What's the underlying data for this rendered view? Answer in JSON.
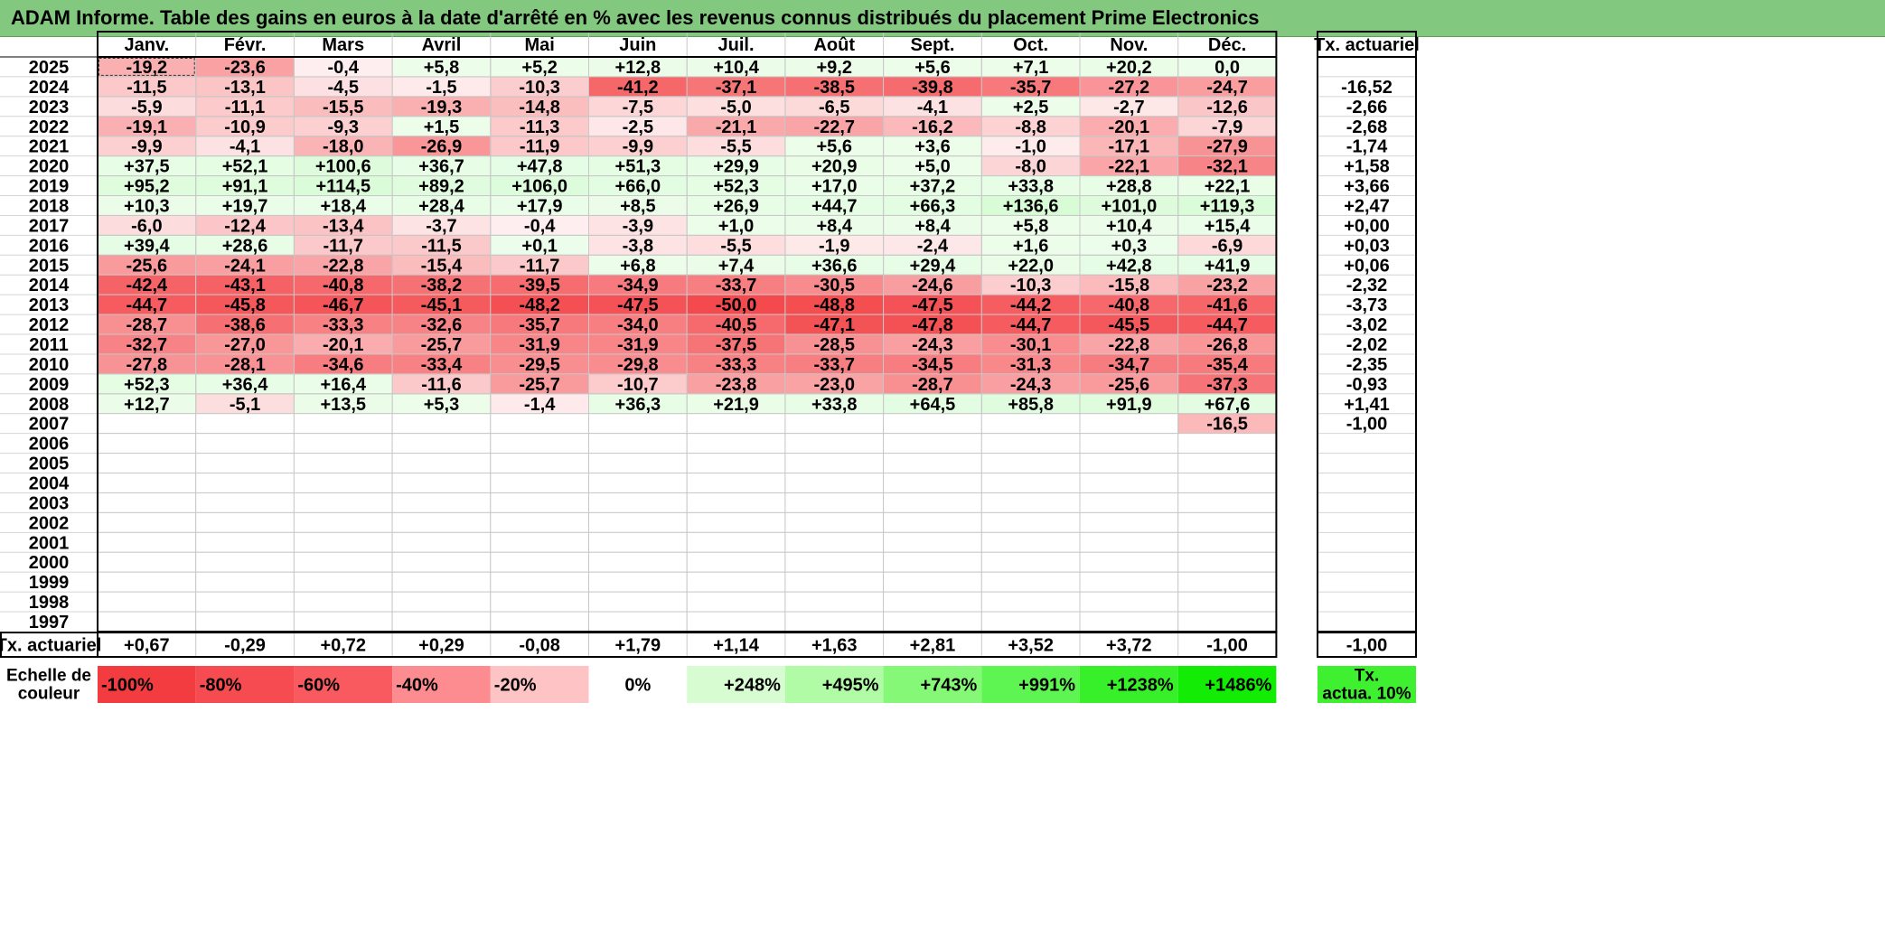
{
  "title": "ADAM Informe. Table des gains en euros à la date d'arrêté en % avec les revenus connus distribués du placement Prime Electronics",
  "chart_data": {
    "type": "heatmap",
    "title": "ADAM Informe. Table des gains en euros à la date d'arrêté en % avec les revenus connus distribués du placement Prime Electronics",
    "months": [
      "Janv.",
      "Févr.",
      "Mars",
      "Avril",
      "Mai",
      "Juin",
      "Juil.",
      "Août",
      "Sept.",
      "Oct.",
      "Nov.",
      "Déc."
    ],
    "years": [
      "2025",
      "2024",
      "2023",
      "2022",
      "2021",
      "2020",
      "2019",
      "2018",
      "2017",
      "2016",
      "2015",
      "2014",
      "2013",
      "2012",
      "2011",
      "2010",
      "2009",
      "2008",
      "2007",
      "2006",
      "2005",
      "2004",
      "2003",
      "2002",
      "2001",
      "2000",
      "1999",
      "1998",
      "1997"
    ],
    "cells": [
      [
        "-19,2",
        "-23,6",
        "-0,4",
        "+5,8",
        "+5,2",
        "+12,8",
        "+10,4",
        "+9,2",
        "+5,6",
        "+7,1",
        "+20,2",
        "0,0"
      ],
      [
        "-11,5",
        "-13,1",
        "-4,5",
        "-1,5",
        "-10,3",
        "-41,2",
        "-37,1",
        "-38,5",
        "-39,8",
        "-35,7",
        "-27,2",
        "-24,7"
      ],
      [
        "-5,9",
        "-11,1",
        "-15,5",
        "-19,3",
        "-14,8",
        "-7,5",
        "-5,0",
        "-6,5",
        "-4,1",
        "+2,5",
        "-2,7",
        "-12,6"
      ],
      [
        "-19,1",
        "-10,9",
        "-9,3",
        "+1,5",
        "-11,3",
        "-2,5",
        "-21,1",
        "-22,7",
        "-16,2",
        "-8,8",
        "-20,1",
        "-7,9"
      ],
      [
        "-9,9",
        "-4,1",
        "-18,0",
        "-26,9",
        "-11,9",
        "-9,9",
        "-5,5",
        "+5,6",
        "+3,6",
        "-1,0",
        "-17,1",
        "-27,9"
      ],
      [
        "+37,5",
        "+52,1",
        "+100,6",
        "+36,7",
        "+47,8",
        "+51,3",
        "+29,9",
        "+20,9",
        "+5,0",
        "-8,0",
        "-22,1",
        "-32,1"
      ],
      [
        "+95,2",
        "+91,1",
        "+114,5",
        "+89,2",
        "+106,0",
        "+66,0",
        "+52,3",
        "+17,0",
        "+37,2",
        "+33,8",
        "+28,8",
        "+22,1"
      ],
      [
        "+10,3",
        "+19,7",
        "+18,4",
        "+28,4",
        "+17,9",
        "+8,5",
        "+26,9",
        "+44,7",
        "+66,3",
        "+136,6",
        "+101,0",
        "+119,3"
      ],
      [
        "-6,0",
        "-12,4",
        "-13,4",
        "-3,7",
        "-0,4",
        "-3,9",
        "+1,0",
        "+8,4",
        "+8,4",
        "+5,8",
        "+10,4",
        "+15,4"
      ],
      [
        "+39,4",
        "+28,6",
        "-11,7",
        "-11,5",
        "+0,1",
        "-3,8",
        "-5,5",
        "-1,9",
        "-2,4",
        "+1,6",
        "+0,3",
        "-6,9"
      ],
      [
        "-25,6",
        "-24,1",
        "-22,8",
        "-15,4",
        "-11,7",
        "+6,8",
        "+7,4",
        "+36,6",
        "+29,4",
        "+22,0",
        "+42,8",
        "+41,9"
      ],
      [
        "-42,4",
        "-43,1",
        "-40,8",
        "-38,2",
        "-39,5",
        "-34,9",
        "-33,7",
        "-30,5",
        "-24,6",
        "-10,3",
        "-15,8",
        "-23,2"
      ],
      [
        "-44,7",
        "-45,8",
        "-46,7",
        "-45,1",
        "-48,2",
        "-47,5",
        "-50,0",
        "-48,8",
        "-47,5",
        "-44,2",
        "-40,8",
        "-41,6"
      ],
      [
        "-28,7",
        "-38,6",
        "-33,3",
        "-32,6",
        "-35,7",
        "-34,0",
        "-40,5",
        "-47,1",
        "-47,8",
        "-44,7",
        "-45,5",
        "-44,7"
      ],
      [
        "-32,7",
        "-27,0",
        "-20,1",
        "-25,7",
        "-31,9",
        "-31,9",
        "-37,5",
        "-28,5",
        "-24,3",
        "-30,1",
        "-22,8",
        "-26,8"
      ],
      [
        "-27,8",
        "-28,1",
        "-34,6",
        "-33,4",
        "-29,5",
        "-29,8",
        "-33,3",
        "-33,7",
        "-34,5",
        "-31,3",
        "-34,7",
        "-35,4"
      ],
      [
        "+52,3",
        "+36,4",
        "+16,4",
        "-11,6",
        "-25,7",
        "-10,7",
        "-23,8",
        "-23,0",
        "-28,7",
        "-24,3",
        "-25,6",
        "-37,3"
      ],
      [
        "+12,7",
        "-5,1",
        "+13,5",
        "+5,3",
        "-1,4",
        "+36,3",
        "+21,9",
        "+33,8",
        "+64,5",
        "+85,8",
        "+91,9",
        "+67,6"
      ],
      [
        "",
        "",
        "",
        "",
        "",
        "",
        "",
        "",
        "",
        "",
        "",
        "-16,5"
      ],
      [
        "",
        "",
        "",
        "",
        "",
        "",
        "",
        "",
        "",
        "",
        "",
        ""
      ],
      [
        "",
        "",
        "",
        "",
        "",
        "",
        "",
        "",
        "",
        "",
        "",
        ""
      ],
      [
        "",
        "",
        "",
        "",
        "",
        "",
        "",
        "",
        "",
        "",
        "",
        ""
      ],
      [
        "",
        "",
        "",
        "",
        "",
        "",
        "",
        "",
        "",
        "",
        "",
        ""
      ],
      [
        "",
        "",
        "",
        "",
        "",
        "",
        "",
        "",
        "",
        "",
        "",
        ""
      ],
      [
        "",
        "",
        "",
        "",
        "",
        "",
        "",
        "",
        "",
        "",
        "",
        ""
      ],
      [
        "",
        "",
        "",
        "",
        "",
        "",
        "",
        "",
        "",
        "",
        "",
        ""
      ],
      [
        "",
        "",
        "",
        "",
        "",
        "",
        "",
        "",
        "",
        "",
        "",
        ""
      ],
      [
        "",
        "",
        "",
        "",
        "",
        "",
        "",
        "",
        "",
        "",
        "",
        ""
      ],
      [
        "",
        "",
        "",
        "",
        "",
        "",
        "",
        "",
        "",
        "",
        "",
        ""
      ]
    ],
    "tx_header": "Tx. actuariel",
    "tx_year": [
      "",
      "-16,52",
      "-2,66",
      "-2,68",
      "-1,74",
      "+1,58",
      "+3,66",
      "+2,47",
      "+0,00",
      "+0,03",
      "+0,06",
      "-2,32",
      "-3,73",
      "-3,02",
      "-2,02",
      "-2,35",
      "-0,93",
      "+1,41",
      "-1,00",
      "",
      "",
      "",
      "",
      "",
      "",
      "",
      "",
      "",
      ""
    ],
    "tx_row_label": "Tx. actuariel",
    "tx_month": [
      "+0,67",
      "-0,29",
      "+0,72",
      "+0,29",
      "-0,08",
      "+1,79",
      "+1,14",
      "+1,63",
      "+2,81",
      "+3,52",
      "+3,72",
      "-1,00"
    ],
    "tx_total": "-1,00",
    "scale_label": "Echelle de couleur",
    "scale": [
      {
        "label": "-100%",
        "color": "#f33c40"
      },
      {
        "label": "-80%",
        "color": "#f64b50"
      },
      {
        "label": "-60%",
        "color": "#f95a60"
      },
      {
        "label": "-40%",
        "color": "#fc8c90"
      },
      {
        "label": "-20%",
        "color": "#fec3c5"
      },
      {
        "label": "0%",
        "color": "#ffffff"
      },
      {
        "label": "+248%",
        "color": "#d8fcd2"
      },
      {
        "label": "+495%",
        "color": "#b2fba6"
      },
      {
        "label": "+743%",
        "color": "#85f878"
      },
      {
        "label": "+991%",
        "color": "#5ef451"
      },
      {
        "label": "+1238%",
        "color": "#38f02a"
      },
      {
        "label": "+1486%",
        "color": "#13ec05"
      }
    ],
    "tx_legend": "Tx. actua. 10%",
    "tx_legend_color": "#3ef030"
  }
}
